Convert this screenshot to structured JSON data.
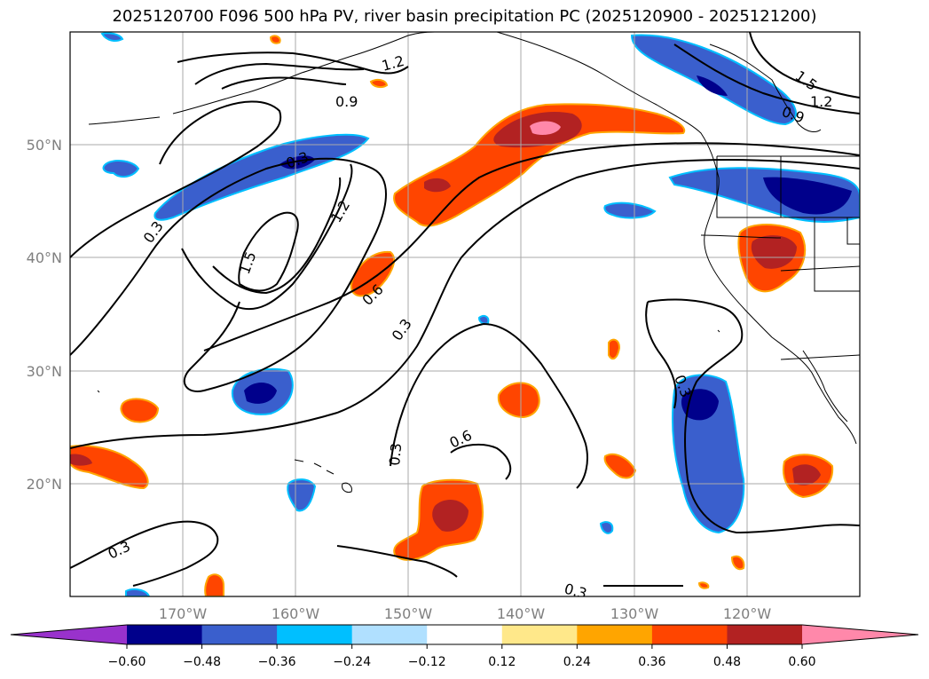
{
  "title": "2025120700 F096 500 hPa PV, river basin precipitation PC (2025120900 - 2025121200)",
  "lat_labels": [
    "50°N",
    "40°N",
    "30°N",
    "20°N"
  ],
  "lon_labels": [
    "170°W",
    "160°W",
    "150°W",
    "140°W",
    "130°W",
    "120°W"
  ],
  "colorbar": {
    "ticks": [
      "−0.60",
      "−0.48",
      "−0.36",
      "−0.24",
      "−0.12",
      "0.12",
      "0.24",
      "0.36",
      "0.48",
      "0.60"
    ],
    "colors": [
      "#9932cc",
      "#00008b",
      "#3a5fcd",
      "#00bfff",
      "#b0e0ff",
      "#ffffff",
      "#ffe88a",
      "#ffa500",
      "#ff4500",
      "#b22222",
      "#ff88aa"
    ]
  },
  "contour_labels": [
    "1.2",
    "0.9",
    "1.5",
    "1.2",
    "0.9",
    "0.3",
    "0.3",
    "1.5",
    "1.2",
    "0.6",
    "0.3",
    "0.3",
    "0.6",
    "0.3",
    "0.3",
    "0.3"
  ],
  "colors": {
    "negative_strong": "#00008b",
    "negative": "#3a5fcd",
    "positive": "#ff4500",
    "positive_strong": "#b22222",
    "positive_max": "#ff88aa"
  }
}
